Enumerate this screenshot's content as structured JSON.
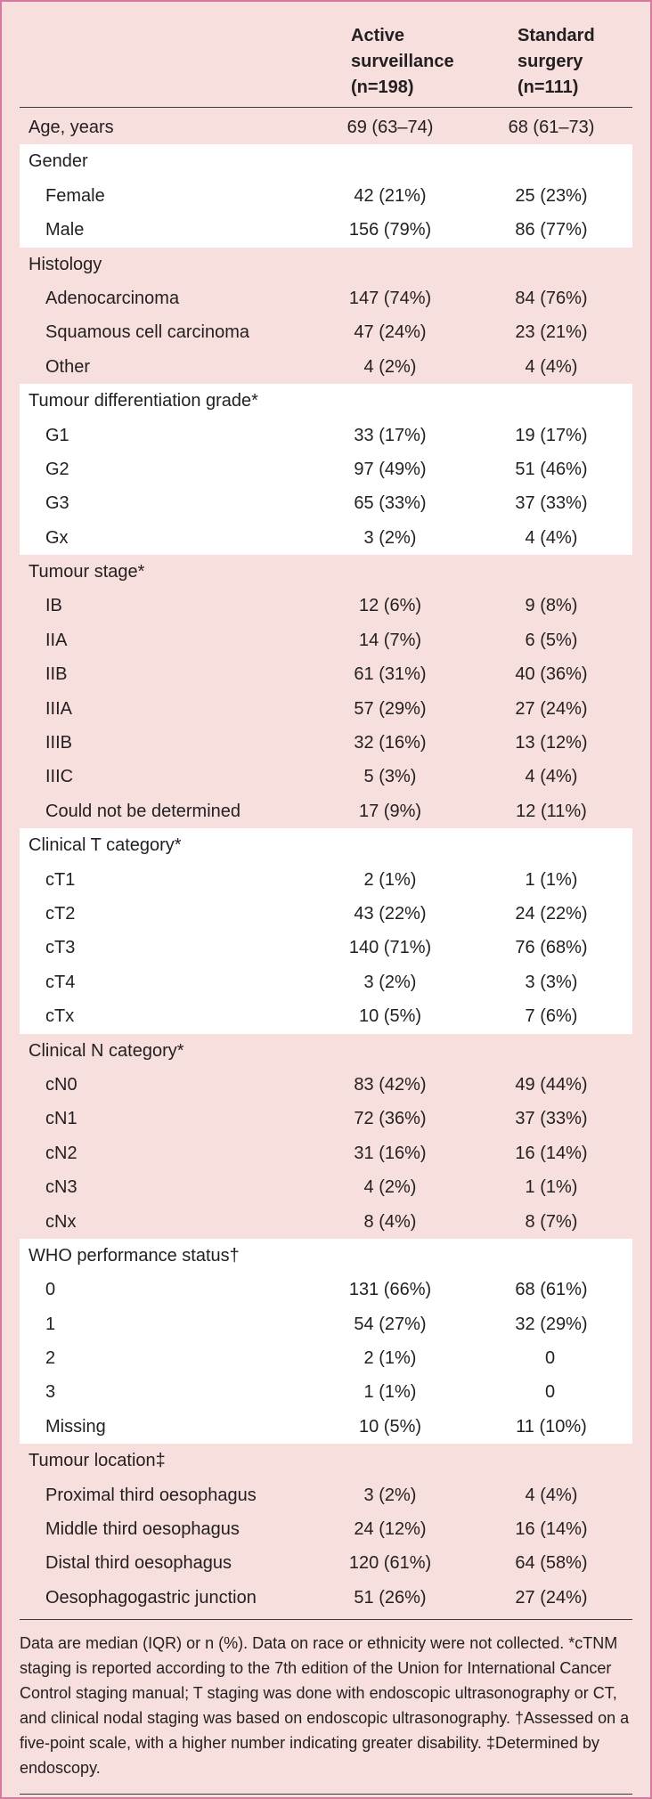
{
  "headers": {
    "col1": [
      "Active",
      "surveillance",
      "(n=198)"
    ],
    "col2": [
      "Standard",
      "surgery",
      "(n=111)"
    ]
  },
  "groups": [
    {
      "bg": "pink",
      "rows": [
        {
          "label": "Age, years",
          "sub": false,
          "v1": "69 (63–74)",
          "v2": "68 (61–73)"
        }
      ]
    },
    {
      "bg": "white",
      "rows": [
        {
          "label": "Gender",
          "sub": false,
          "v1": "",
          "v2": ""
        },
        {
          "label": "Female",
          "sub": true,
          "v1": "42 (21%)",
          "v2": "25 (23%)"
        },
        {
          "label": "Male",
          "sub": true,
          "v1": "156 (79%)",
          "v2": "86 (77%)"
        }
      ]
    },
    {
      "bg": "pink",
      "rows": [
        {
          "label": "Histology",
          "sub": false,
          "v1": "",
          "v2": ""
        },
        {
          "label": "Adenocarcinoma",
          "sub": true,
          "v1": "147 (74%)",
          "v2": "84 (76%)"
        },
        {
          "label": "Squamous cell carcinoma",
          "sub": true,
          "v1": "47 (24%)",
          "v2": "23 (21%)"
        },
        {
          "label": "Other",
          "sub": true,
          "v1": "4 (2%)",
          "v2": "4 (4%)"
        }
      ]
    },
    {
      "bg": "white",
      "rows": [
        {
          "label": "Tumour differentiation grade*",
          "sub": false,
          "v1": "",
          "v2": ""
        },
        {
          "label": "G1",
          "sub": true,
          "v1": "33 (17%)",
          "v2": "19 (17%)"
        },
        {
          "label": "G2",
          "sub": true,
          "v1": "97 (49%)",
          "v2": "51 (46%)"
        },
        {
          "label": "G3",
          "sub": true,
          "v1": "65 (33%)",
          "v2": "37 (33%)"
        },
        {
          "label": "Gx",
          "sub": true,
          "v1": "3 (2%)",
          "v2": "4 (4%)"
        }
      ]
    },
    {
      "bg": "pink",
      "rows": [
        {
          "label": "Tumour stage*",
          "sub": false,
          "v1": "",
          "v2": ""
        },
        {
          "label": "IB",
          "sub": true,
          "v1": "12 (6%)",
          "v2": "9 (8%)"
        },
        {
          "label": "IIA",
          "sub": true,
          "v1": "14 (7%)",
          "v2": "6 (5%)"
        },
        {
          "label": "IIB",
          "sub": true,
          "v1": "61 (31%)",
          "v2": "40 (36%)"
        },
        {
          "label": "IIIA",
          "sub": true,
          "v1": "57 (29%)",
          "v2": "27 (24%)"
        },
        {
          "label": "IIIB",
          "sub": true,
          "v1": "32 (16%)",
          "v2": "13 (12%)"
        },
        {
          "label": "IIIC",
          "sub": true,
          "v1": "5 (3%)",
          "v2": "4 (4%)"
        },
        {
          "label": "Could not be determined",
          "sub": true,
          "v1": "17 (9%)",
          "v2": "12 (11%)"
        }
      ]
    },
    {
      "bg": "white",
      "rows": [
        {
          "label": "Clinical T category*",
          "sub": false,
          "v1": "",
          "v2": ""
        },
        {
          "label": "cT1",
          "sub": true,
          "v1": "2 (1%)",
          "v2": "1 (1%)"
        },
        {
          "label": "cT2",
          "sub": true,
          "v1": "43 (22%)",
          "v2": "24 (22%)"
        },
        {
          "label": "cT3",
          "sub": true,
          "v1": "140 (71%)",
          "v2": "76 (68%)"
        },
        {
          "label": "cT4",
          "sub": true,
          "v1": "3 (2%)",
          "v2": "3 (3%)"
        },
        {
          "label": "cTx",
          "sub": true,
          "v1": "10 (5%)",
          "v2": "7 (6%)"
        }
      ]
    },
    {
      "bg": "pink",
      "rows": [
        {
          "label": "Clinical N category*",
          "sub": false,
          "v1": "",
          "v2": ""
        },
        {
          "label": "cN0",
          "sub": true,
          "v1": "83 (42%)",
          "v2": "49 (44%)"
        },
        {
          "label": "cN1",
          "sub": true,
          "v1": "72 (36%)",
          "v2": "37 (33%)"
        },
        {
          "label": "cN2",
          "sub": true,
          "v1": "31 (16%)",
          "v2": "16 (14%)"
        },
        {
          "label": "cN3",
          "sub": true,
          "v1": "4 (2%)",
          "v2": "1 (1%)"
        },
        {
          "label": "cNx",
          "sub": true,
          "v1": "8 (4%)",
          "v2": "8 (7%)"
        }
      ]
    },
    {
      "bg": "white",
      "rows": [
        {
          "label": "WHO performance status†",
          "sub": false,
          "v1": "",
          "v2": ""
        },
        {
          "label": "0",
          "sub": true,
          "v1": "131 (66%)",
          "v2": "68 (61%)"
        },
        {
          "label": "1",
          "sub": true,
          "v1": "54 (27%)",
          "v2": "32 (29%)"
        },
        {
          "label": "2",
          "sub": true,
          "v1": "2 (1%)",
          "v2": "0"
        },
        {
          "label": "3",
          "sub": true,
          "v1": "1 (1%)",
          "v2": "0"
        },
        {
          "label": "Missing",
          "sub": true,
          "v1": "10 (5%)",
          "v2": "11 (10%)"
        }
      ]
    },
    {
      "bg": "pink",
      "rows": [
        {
          "label": "Tumour location‡",
          "sub": false,
          "v1": "",
          "v2": ""
        },
        {
          "label": "Proximal third oesophagus",
          "sub": true,
          "v1": "3 (2%)",
          "v2": "4 (4%)"
        },
        {
          "label": "Middle third oesophagus",
          "sub": true,
          "v1": "24 (12%)",
          "v2": "16 (14%)"
        },
        {
          "label": "Distal third oesophagus",
          "sub": true,
          "v1": "120 (61%)",
          "v2": "64 (58%)"
        },
        {
          "label": "Oesophagogastric junction",
          "sub": true,
          "v1": "51 (26%)",
          "v2": "27 (24%)"
        }
      ]
    }
  ],
  "footnote": "Data are median (IQR) or n (%). Data on race or ethnicity were not collected. *cTNM staging is reported according to the 7th edition of the Union for International Cancer Control staging manual; T staging was done with endoscopic ultrasonography or CT, and clinical nodal staging was based on endoscopic ultrasonography. †Assessed on a five-point scale, with a higher number indicating greater disability. ‡Determined by endoscopy."
}
